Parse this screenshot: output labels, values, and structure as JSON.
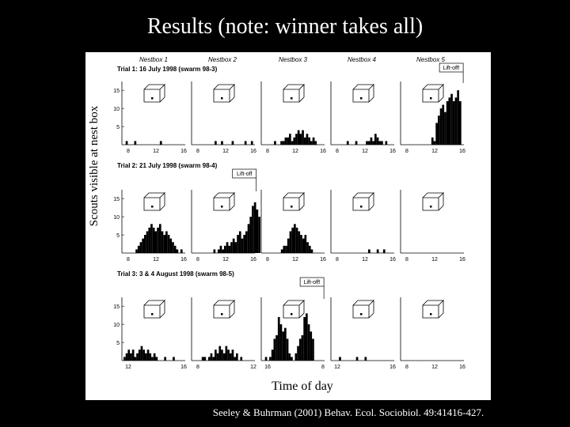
{
  "title": "Results (note: winner takes all)",
  "citation": "Seeley & Buhrman (2001) Behav. Ecol. Sociobiol. 49:41416-427.",
  "chart_data": {
    "type": "bar",
    "ylabel": "Scouts visible at nest box",
    "xlabel": "Time of day",
    "ylim": [
      0,
      17
    ],
    "nestbox_labels": [
      "Nestbox 1",
      "Nestbox 2",
      "Nestbox 3",
      "Nestbox 4",
      "Nestbox 5"
    ],
    "trials": [
      {
        "title": "Trial 1: 16 July 1998 (swarm 98-3)",
        "y_ticks": [
          "15",
          "10",
          "5"
        ],
        "x_ticks": [
          [
            "8",
            "12",
            "16"
          ],
          [
            "8",
            "12",
            "16"
          ],
          [
            "8",
            "12",
            "16"
          ],
          [
            "8",
            "12",
            "16"
          ],
          [
            "8",
            "12",
            "16"
          ]
        ],
        "liftoff_label": "Lift-off!",
        "liftoff_panel": 4,
        "liftoff_pos": 0.92,
        "panels": [
          {
            "start": 0.0,
            "values": [
              0,
              1,
              0,
              0,
              0,
              1,
              0,
              0,
              0,
              0,
              0,
              0,
              0,
              0,
              0,
              0,
              0,
              1,
              0,
              0,
              0,
              0,
              0,
              0,
              0,
              0,
              0,
              0,
              0,
              0,
              0,
              0
            ]
          },
          {
            "start": 0.0,
            "values": [
              0,
              0,
              0,
              0,
              0,
              0,
              0,
              0,
              0,
              0,
              1,
              0,
              0,
              1,
              0,
              0,
              0,
              0,
              1,
              0,
              0,
              0,
              0,
              0,
              1,
              0,
              0,
              1,
              0,
              0,
              0,
              0
            ]
          },
          {
            "start": 0.15,
            "values": [
              0,
              1,
              0,
              0,
              1,
              1,
              2,
              2,
              3,
              1,
              2,
              3,
              4,
              3,
              4,
              2,
              3,
              2,
              1,
              2,
              1,
              0,
              0,
              0,
              0,
              0,
              0,
              0,
              0,
              0
            ]
          },
          {
            "start": 0.2,
            "values": [
              0,
              1,
              0,
              0,
              0,
              1,
              0,
              0,
              0,
              0,
              1,
              1,
              2,
              1,
              3,
              2,
              1,
              1,
              0,
              1,
              0,
              0,
              0,
              0,
              0,
              0
            ]
          },
          {
            "start": 0.45,
            "values": [
              0,
              2,
              1,
              6,
              8,
              10,
              11,
              9,
              12,
              13,
              14,
              12,
              13,
              15,
              12
            ]
          }
        ]
      },
      {
        "title": "Trial 2: 21 July 1998 (swarm 98-4)",
        "y_ticks": [
          "15",
          "10",
          "5"
        ],
        "x_ticks": [
          [
            "8",
            "12",
            "16"
          ],
          [
            "8",
            "12",
            "16"
          ],
          [
            "8",
            "12",
            "16"
          ],
          [
            "8",
            "12",
            "16"
          ],
          [
            "8",
            "12",
            "16"
          ]
        ],
        "liftoff_label": "Lift-off",
        "liftoff_panel": 1,
        "liftoff_pos": 0.95,
        "panels": [
          {
            "start": 0.2,
            "values": [
              1,
              2,
              3,
              4,
              5,
              6,
              7,
              8,
              7,
              6,
              7,
              8,
              6,
              5,
              6,
              5,
              4,
              3,
              2,
              1,
              0,
              1
            ]
          },
          {
            "start": 0.3,
            "values": [
              0,
              1,
              0,
              1,
              2,
              1,
              2,
              3,
              2,
              3,
              4,
              3,
              5,
              6,
              4,
              5,
              6,
              8,
              10,
              13,
              14,
              12,
              10
            ]
          },
          {
            "start": 0.3,
            "values": [
              1,
              2,
              2,
              4,
              6,
              7,
              8,
              7,
              6,
              5,
              4,
              5,
              3,
              2,
              1
            ]
          },
          {
            "start": 0.45,
            "values": [
              0,
              0,
              0,
              0,
              1,
              0,
              0,
              0,
              1,
              0,
              0,
              1
            ]
          },
          {
            "start": 0.0,
            "values": []
          }
        ]
      },
      {
        "title": "Trial 3: 3 & 4 August 1998 (swarm 98-5)",
        "y_ticks": [
          "15",
          "10",
          "5"
        ],
        "x_ticks": [
          [
            "12",
            "16"
          ],
          [
            "8",
            "12"
          ],
          [
            "16",
            "8"
          ],
          [
            "12",
            "16"
          ],
          [
            "8",
            "12",
            "16"
          ]
        ],
        "liftoff_label": "Lift-off!",
        "liftoff_panel": 2,
        "liftoff_pos": 0.92,
        "panels": [
          {
            "start": 0.0,
            "values": [
              1,
              2,
              3,
              2,
              3,
              1,
              2,
              3,
              4,
              3,
              2,
              3,
              2,
              1,
              2,
              1,
              0,
              0,
              0,
              1,
              0,
              0,
              0,
              1,
              0
            ]
          },
          {
            "start": 0.0,
            "values": [
              0,
              0,
              0,
              0,
              1,
              1,
              0,
              1,
              2,
              1,
              3,
              2,
              4,
              3,
              2,
              4,
              3,
              2,
              3,
              1,
              2,
              0,
              1,
              0,
              0,
              0,
              0
            ]
          },
          {
            "start": 0.0,
            "values": [
              0,
              1,
              0,
              1,
              3,
              6,
              7,
              12,
              10,
              8,
              9,
              6,
              2,
              1,
              0,
              2,
              4,
              6,
              7,
              12,
              13,
              10,
              8,
              6
            ]
          },
          {
            "start": 0.0,
            "values": [
              0,
              0,
              0,
              1,
              0,
              0,
              0,
              0,
              0,
              0,
              0,
              1,
              0,
              0,
              0,
              1,
              0,
              0,
              0,
              0
            ]
          },
          {
            "start": 0.0,
            "values": [
              0,
              0,
              0,
              0,
              0,
              0,
              0,
              0,
              0,
              0,
              0,
              0,
              0,
              0,
              0
            ]
          }
        ]
      }
    ]
  }
}
